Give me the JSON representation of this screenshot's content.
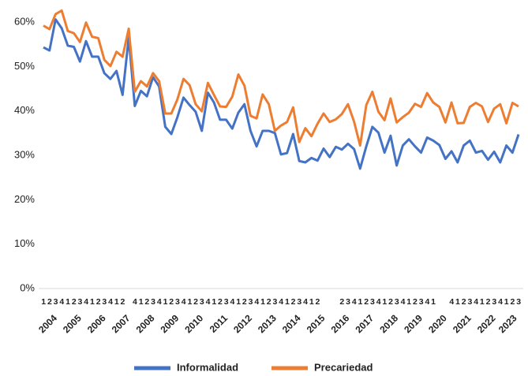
{
  "chart_data": {
    "type": "line",
    "categories": [
      "1",
      "2",
      "3",
      "4",
      "1",
      "2",
      "3",
      "4",
      "1",
      "2",
      "3",
      "4",
      "1",
      "2",
      null,
      "4",
      "1",
      "2",
      "3",
      "4",
      "1",
      "2",
      "3",
      "4",
      "1",
      "2",
      "3",
      "4",
      "1",
      "2",
      "3",
      "4",
      "1",
      "2",
      "3",
      "4",
      "1",
      "2",
      "3",
      "4",
      "1",
      "2",
      "3",
      "4",
      "1",
      "2",
      null,
      null,
      null,
      "2",
      "3",
      "4",
      "1",
      "2",
      "3",
      "4",
      "1",
      "2",
      "3",
      "4",
      "1",
      "2",
      "3",
      "4",
      "1",
      null,
      null,
      "4",
      "1",
      "2",
      "3",
      "4",
      "1",
      "2",
      "3",
      "4",
      "1",
      "2",
      "3"
    ],
    "year_labels": [
      "2004",
      "2005",
      "2006",
      "2007",
      "2008",
      "2009",
      "2010",
      "2011",
      "2012",
      "2013",
      "2014",
      "2015",
      "2016",
      "2017",
      "2018",
      "2019",
      "2020",
      "2021",
      "2022",
      "2023"
    ],
    "series": [
      {
        "name": "Informalidad",
        "color": "#4472c4",
        "values": [
          54.3,
          53.6,
          60.6,
          58.6,
          54.7,
          54.4,
          51.1,
          55.7,
          52.2,
          52.2,
          48.5,
          47.2,
          49.0,
          43.6,
          56.5,
          41.1,
          44.5,
          43.3,
          47.6,
          45.5,
          36.4,
          34.8,
          38.6,
          43.0,
          41.3,
          39.8,
          35.5,
          44.1,
          41.9,
          38.0,
          38.0,
          36.0,
          39.6,
          41.5,
          35.5,
          32.0,
          35.5,
          35.5,
          35.0,
          30.2,
          30.5,
          34.8,
          28.7,
          28.4,
          29.4,
          28.8,
          31.5,
          29.6,
          31.9,
          31.3,
          32.6,
          31.4,
          27.0,
          32.0,
          36.4,
          35.1,
          30.6,
          34.4,
          27.7,
          32.2,
          33.6,
          32.0,
          30.6,
          34.0,
          33.3,
          32.3,
          29.2,
          30.9,
          28.4,
          32.2,
          33.3,
          30.6,
          31.0,
          29.0,
          30.8,
          28.4,
          32.2,
          30.6,
          34.7
        ]
      },
      {
        "name": "Precariedad",
        "color": "#ed7d31",
        "values": [
          59.2,
          58.4,
          61.8,
          62.6,
          58.0,
          57.5,
          55.5,
          59.9,
          56.7,
          56.4,
          51.5,
          50.1,
          53.3,
          52.2,
          58.5,
          44.3,
          46.7,
          45.5,
          48.5,
          46.7,
          39.4,
          39.4,
          42.6,
          47.2,
          45.8,
          41.5,
          39.9,
          46.3,
          43.6,
          41.0,
          40.9,
          43.2,
          48.2,
          45.7,
          38.9,
          38.3,
          43.7,
          41.5,
          35.5,
          36.7,
          37.5,
          40.8,
          33.0,
          36.1,
          34.3,
          37.1,
          39.4,
          37.5,
          38.1,
          39.3,
          41.5,
          37.6,
          32.2,
          41.3,
          44.3,
          39.8,
          37.9,
          42.8,
          37.4,
          38.6,
          39.6,
          41.6,
          40.9,
          44.0,
          41.9,
          40.9,
          37.4,
          41.9,
          37.2,
          37.3,
          40.9,
          41.8,
          41.0,
          37.5,
          40.5,
          41.5,
          37.2,
          41.8,
          41.0
        ]
      }
    ],
    "ylim": [
      0,
      60
    ],
    "yticks": [
      {
        "value": 0,
        "label": "0%"
      },
      {
        "value": 10,
        "label": "10%"
      },
      {
        "value": 20,
        "label": "20%"
      },
      {
        "value": 30,
        "label": "30%"
      },
      {
        "value": 40,
        "label": "40%"
      },
      {
        "value": 50,
        "label": "50%"
      },
      {
        "value": 60,
        "label": "60%"
      }
    ],
    "grid": false
  }
}
